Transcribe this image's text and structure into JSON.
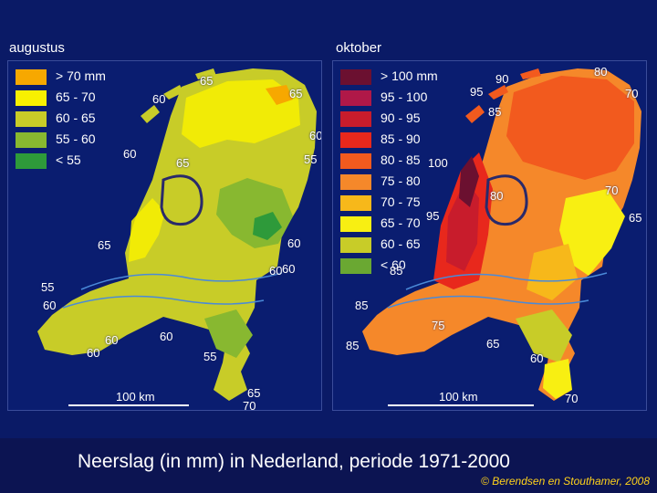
{
  "maps": [
    {
      "title": "augustus",
      "land_color": "#c8cc28",
      "legend": [
        {
          "label": "> 70 mm",
          "color": "#f7a800"
        },
        {
          "label": "65 - 70",
          "color": "#f8f000"
        },
        {
          "label": "60 - 65",
          "color": "#c8cc28"
        },
        {
          "label": "55 - 60",
          "color": "#88b830"
        },
        {
          "label": "< 55",
          "color": "#2e9a3a"
        }
      ],
      "values": [
        "65",
        "60",
        "65",
        "60",
        "60",
        "65",
        "55",
        "65",
        "60",
        "60",
        "55",
        "60",
        "60",
        "60",
        "60",
        "55",
        "60",
        "65",
        "70"
      ],
      "scale": "100 km"
    },
    {
      "title": "oktober",
      "land_color": "#f5882a",
      "legend": [
        {
          "label": "> 100 mm",
          "color": "#6b1030"
        },
        {
          "label": "95 - 100",
          "color": "#b01848"
        },
        {
          "label": "90 - 95",
          "color": "#c81c2c"
        },
        {
          "label": "85 - 90",
          "color": "#e8281c"
        },
        {
          "label": "80 - 85",
          "color": "#f25a1e"
        },
        {
          "label": "75 - 80",
          "color": "#f5882a"
        },
        {
          "label": "70 - 75",
          "color": "#f7b81a"
        },
        {
          "label": "65 - 70",
          "color": "#f8ef12"
        },
        {
          "label": "60 - 65",
          "color": "#c8cc28"
        },
        {
          "label": "< 60",
          "color": "#6aa832"
        }
      ],
      "values": [
        "80",
        "90",
        "95",
        "70",
        "85",
        "100",
        "80",
        "70",
        "95",
        "65",
        "85",
        "85",
        "75",
        "85",
        "65",
        "60",
        "70"
      ],
      "scale": "100 km"
    }
  ],
  "caption": "Neerslag (in mm) in Nederland, periode 1971-2000",
  "credit": "© Berendsen en Stouthamer, 2008"
}
